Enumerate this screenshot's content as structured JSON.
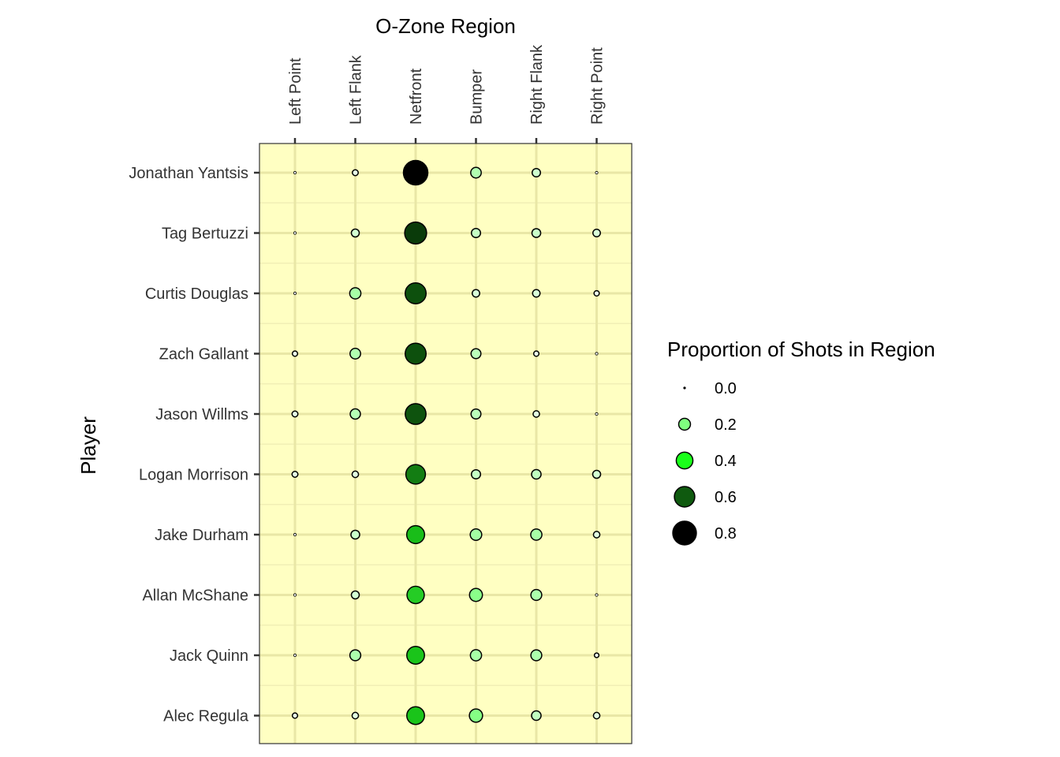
{
  "chart_data": {
    "type": "scatter",
    "title": "",
    "xlabel": "O-Zone Region",
    "ylabel": "Player",
    "x_axis_position": "top",
    "x_categories": [
      "Left Point",
      "Left Flank",
      "Netfront",
      "Bumper",
      "Right Flank",
      "Right Point"
    ],
    "y_categories": [
      "Jonathan Yantsis",
      "Tag Bertuzzi",
      "Curtis Douglas",
      "Zach Gallant",
      "Jason Willms",
      "Logan Morrison",
      "Jake Durham",
      "Allan McShane",
      "Jack Quinn",
      "Alec Regula"
    ],
    "size_and_color_variable": "Proportion of Shots in Region",
    "values": [
      [
        0.01,
        0.05,
        0.86,
        0.16,
        0.1,
        0.01
      ],
      [
        0.01,
        0.09,
        0.69,
        0.12,
        0.11,
        0.08
      ],
      [
        0.01,
        0.18,
        0.63,
        0.08,
        0.08,
        0.04
      ],
      [
        0.04,
        0.16,
        0.63,
        0.14,
        0.04,
        0.01
      ],
      [
        0.05,
        0.15,
        0.62,
        0.14,
        0.06,
        0.01
      ],
      [
        0.05,
        0.06,
        0.55,
        0.12,
        0.13,
        0.09
      ],
      [
        0.01,
        0.11,
        0.46,
        0.19,
        0.18,
        0.06
      ],
      [
        0.01,
        0.09,
        0.43,
        0.24,
        0.17,
        0.01
      ],
      [
        0.01,
        0.17,
        0.45,
        0.18,
        0.17,
        0.03
      ],
      [
        0.04,
        0.06,
        0.45,
        0.25,
        0.13,
        0.06
      ]
    ],
    "legend": {
      "title": "Proportion of Shots in Region",
      "position": "right",
      "entries": [
        {
          "value": 0.0,
          "label": "0.0",
          "color": "#000000"
        },
        {
          "value": 0.2,
          "label": "0.2",
          "color": "#7FFF7F"
        },
        {
          "value": 0.4,
          "label": "0.4",
          "color": "#1AFF1A"
        },
        {
          "value": 0.6,
          "label": "0.6",
          "color": "#0F5A0F"
        },
        {
          "value": 0.8,
          "label": "0.8",
          "color": "#000000"
        }
      ]
    },
    "color_scale": {
      "stops": [
        {
          "v": 0.0,
          "color": "#ffffff"
        },
        {
          "v": 0.3,
          "color": "#6dff6d"
        },
        {
          "v": 0.45,
          "color": "#1ac41a"
        },
        {
          "v": 0.6,
          "color": "#0f5a0f"
        },
        {
          "v": 0.86,
          "color": "#000000"
        }
      ]
    },
    "size_range": [
      0,
      0.86
    ],
    "panel_background": "#FFFFC2",
    "grid": true
  }
}
